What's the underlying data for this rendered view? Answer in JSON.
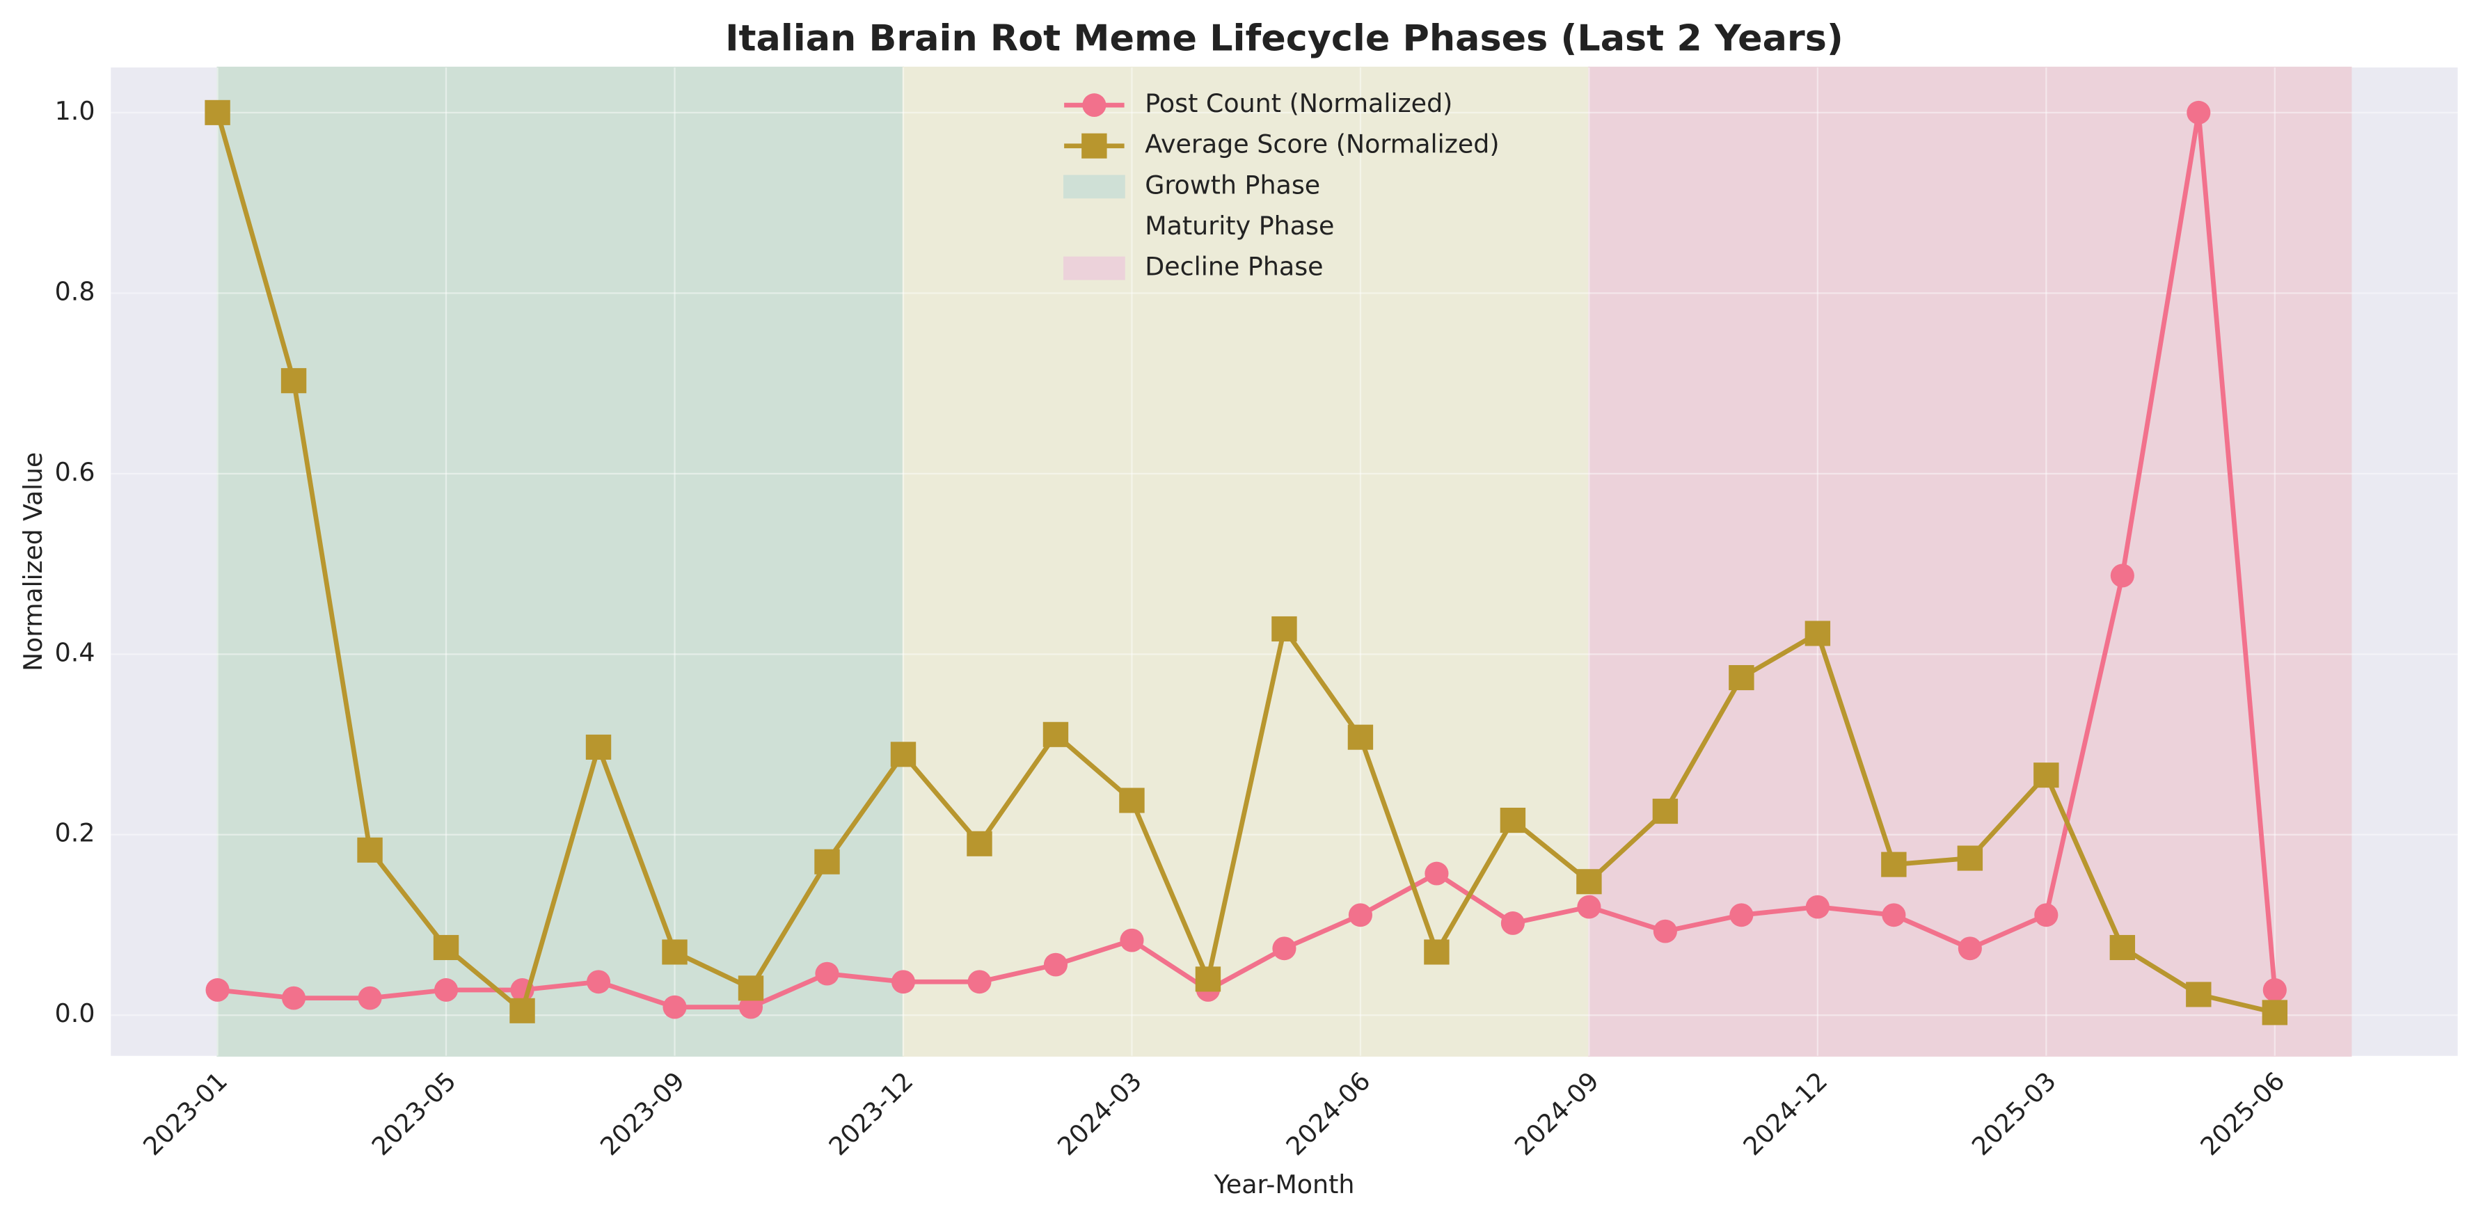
{
  "chart_data": {
    "type": "line",
    "title": "Italian Brain Rot Meme Lifecycle Phases (Last 2 Years)",
    "xlabel": "Year-Month",
    "ylabel": "Normalized Value",
    "categories": [
      "2023-01",
      null,
      null,
      "2023-05",
      null,
      null,
      "2023-09",
      null,
      null,
      "2023-12",
      null,
      null,
      "2024-03",
      null,
      null,
      "2024-06",
      null,
      null,
      "2024-09",
      null,
      null,
      "2024-12",
      null,
      null,
      "2025-03",
      null,
      null,
      "2025-06"
    ],
    "xlim": [
      -1.4,
      29.4
    ],
    "ylim": [
      -0.045,
      1.05
    ],
    "yticks": [
      {
        "value": 0,
        "label": "0.0"
      },
      0.2,
      0.4,
      0.6,
      0.8,
      {
        "value": 1,
        "label": "1.0"
      }
    ],
    "grid": true,
    "legend": "upper center",
    "series": [
      {
        "name": "Post Count (Normalized)",
        "color": "#f2718c",
        "marker": "circle",
        "values": [
          0.028,
          0.019,
          0.019,
          0.028,
          0.028,
          0.037,
          0.009,
          0.009,
          0.046,
          0.037,
          0.037,
          0.056,
          0.083,
          0.028,
          0.074,
          0.111,
          0.157,
          0.102,
          0.12,
          0.093,
          0.111,
          0.12,
          0.111,
          0.074,
          0.111,
          0.487,
          1.0,
          0.028
        ]
      },
      {
        "name": "Average Score (Normalized)",
        "color": "#b8962e",
        "marker": "square",
        "values": [
          1.0,
          0.703,
          0.183,
          0.075,
          0.005,
          0.297,
          0.07,
          0.03,
          0.17,
          0.289,
          0.19,
          0.311,
          0.238,
          0.04,
          0.428,
          0.308,
          0.07,
          0.216,
          0.148,
          0.226,
          0.374,
          0.423,
          0.167,
          0.174,
          0.266,
          0.075,
          0.023,
          0.003
        ]
      }
    ],
    "phases": [
      {
        "name": "Growth Phase",
        "color": "#cfe0d6",
        "start": 0,
        "end": 9
      },
      {
        "name": "Maturity Phase",
        "color": "#ecebd8",
        "start": 9,
        "end": 18
      },
      {
        "name": "Decline Phase",
        "color": "#ecd2da",
        "start": 18,
        "end": 28
      }
    ]
  }
}
